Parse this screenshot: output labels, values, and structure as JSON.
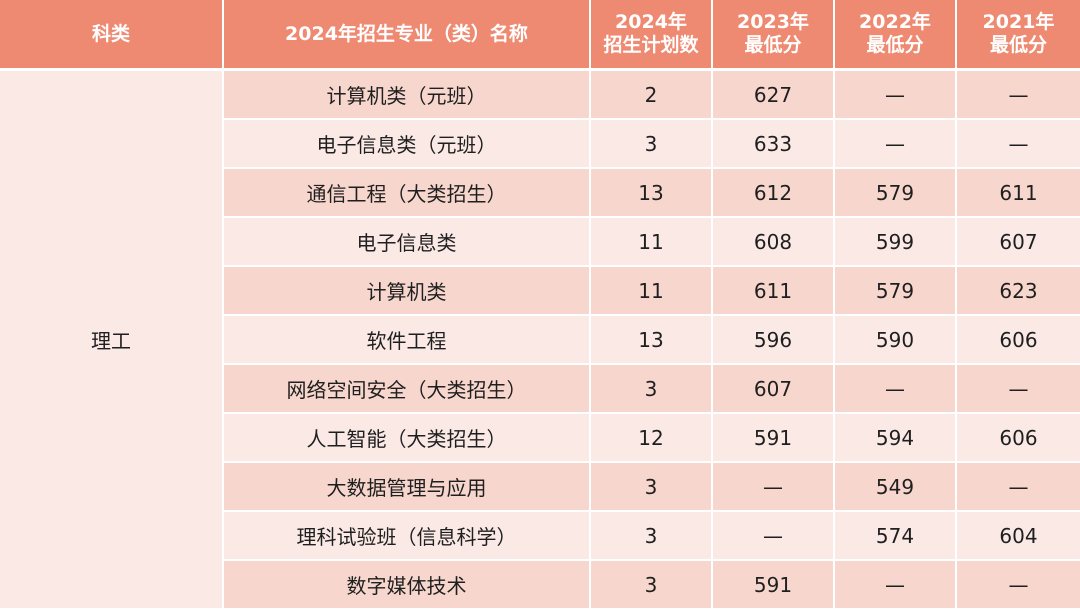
{
  "table": {
    "headers": {
      "category": "科类",
      "major": "2024年招生专业（类）名称",
      "plan_2024_line1": "2024年",
      "plan_2024_line2": "招生计划数",
      "min_2023_line1": "2023年",
      "min_2023_line2": "最低分",
      "min_2022_line1": "2022年",
      "min_2022_line2": "最低分",
      "min_2021_line1": "2021年",
      "min_2021_line2": "最低分"
    },
    "category": "理工",
    "rows": [
      {
        "major": "计算机类（元班）",
        "plan": "2",
        "y2023": "627",
        "y2022": "—",
        "y2021": "—"
      },
      {
        "major": "电子信息类（元班）",
        "plan": "3",
        "y2023": "633",
        "y2022": "—",
        "y2021": "—"
      },
      {
        "major": "通信工程（大类招生）",
        "plan": "13",
        "y2023": "612",
        "y2022": "579",
        "y2021": "611"
      },
      {
        "major": "电子信息类",
        "plan": "11",
        "y2023": "608",
        "y2022": "599",
        "y2021": "607"
      },
      {
        "major": "计算机类",
        "plan": "11",
        "y2023": "611",
        "y2022": "579",
        "y2021": "623"
      },
      {
        "major": "软件工程",
        "plan": "13",
        "y2023": "596",
        "y2022": "590",
        "y2021": "606"
      },
      {
        "major": "网络空间安全（大类招生）",
        "plan": "3",
        "y2023": "607",
        "y2022": "—",
        "y2021": "—"
      },
      {
        "major": "人工智能（大类招生）",
        "plan": "12",
        "y2023": "591",
        "y2022": "594",
        "y2021": "606"
      },
      {
        "major": "大数据管理与应用",
        "plan": "3",
        "y2023": "—",
        "y2022": "549",
        "y2021": "—"
      },
      {
        "major": "理科试验班（信息科学）",
        "plan": "3",
        "y2023": "—",
        "y2022": "574",
        "y2021": "604"
      },
      {
        "major": "数字媒体技术",
        "plan": "3",
        "y2023": "591",
        "y2022": "—",
        "y2021": "—"
      }
    ]
  },
  "colors": {
    "header_bg": "#ef8a72",
    "row_dark": "#f7d6cd",
    "row_light": "#fae9e5"
  }
}
